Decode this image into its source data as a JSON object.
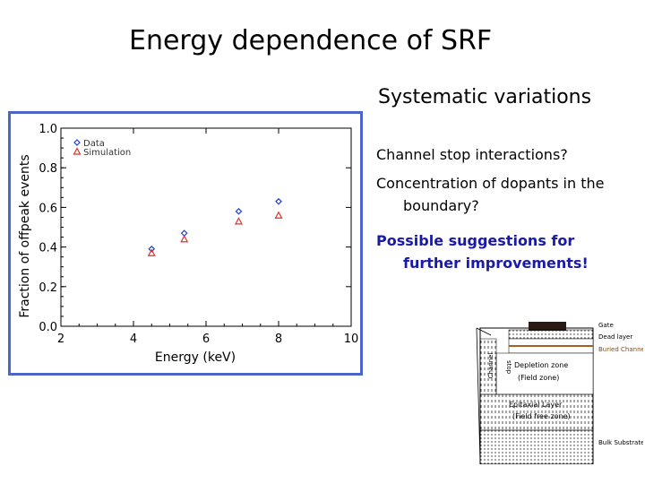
{
  "slide": {
    "title": "Energy dependence of SRF",
    "systematics_title": "Systematic variations",
    "bullets": [
      "Channel stop interactions?",
      "Concentration of dopants in the boundary?"
    ],
    "suggestion": "Possible suggestions for further improvements!"
  },
  "chart_data": {
    "type": "scatter",
    "xlabel": "Energy (keV)",
    "ylabel": "Fraction of offpeak events",
    "xlim": [
      2,
      10
    ],
    "ylim": [
      0.0,
      1.0
    ],
    "xticks": [
      "2",
      "4",
      "6",
      "8",
      "10"
    ],
    "yticks": [
      "0.0",
      "0.2",
      "0.4",
      "0.6",
      "0.8",
      "1.0"
    ],
    "legend_position": "top-left",
    "grid": false,
    "series": [
      {
        "name": "Data",
        "marker": "diamond",
        "color": "#1f3fd1",
        "points": [
          {
            "x": 4.5,
            "y": 0.39
          },
          {
            "x": 5.4,
            "y": 0.47
          },
          {
            "x": 6.9,
            "y": 0.58
          },
          {
            "x": 8.0,
            "y": 0.63
          }
        ]
      },
      {
        "name": "Simulation",
        "marker": "triangle",
        "color": "#e0302a",
        "points": [
          {
            "x": 4.5,
            "y": 0.37
          },
          {
            "x": 5.4,
            "y": 0.44
          },
          {
            "x": 6.9,
            "y": 0.53
          },
          {
            "x": 8.0,
            "y": 0.56
          }
        ]
      }
    ]
  },
  "diagram": {
    "labels": {
      "gate": "Gate",
      "dead_layer": "Dead layer",
      "buried_channel": "Buried Channel",
      "depletion_zone": "Depletion zone",
      "field_zone": "(Field zone)",
      "epitaxial_layer": "Epitaxial Layer",
      "field_free_zone": "(Field free zone)",
      "bulk_substrate": "Bulk Substrate",
      "channel": "Channel",
      "stop": "stop"
    }
  }
}
